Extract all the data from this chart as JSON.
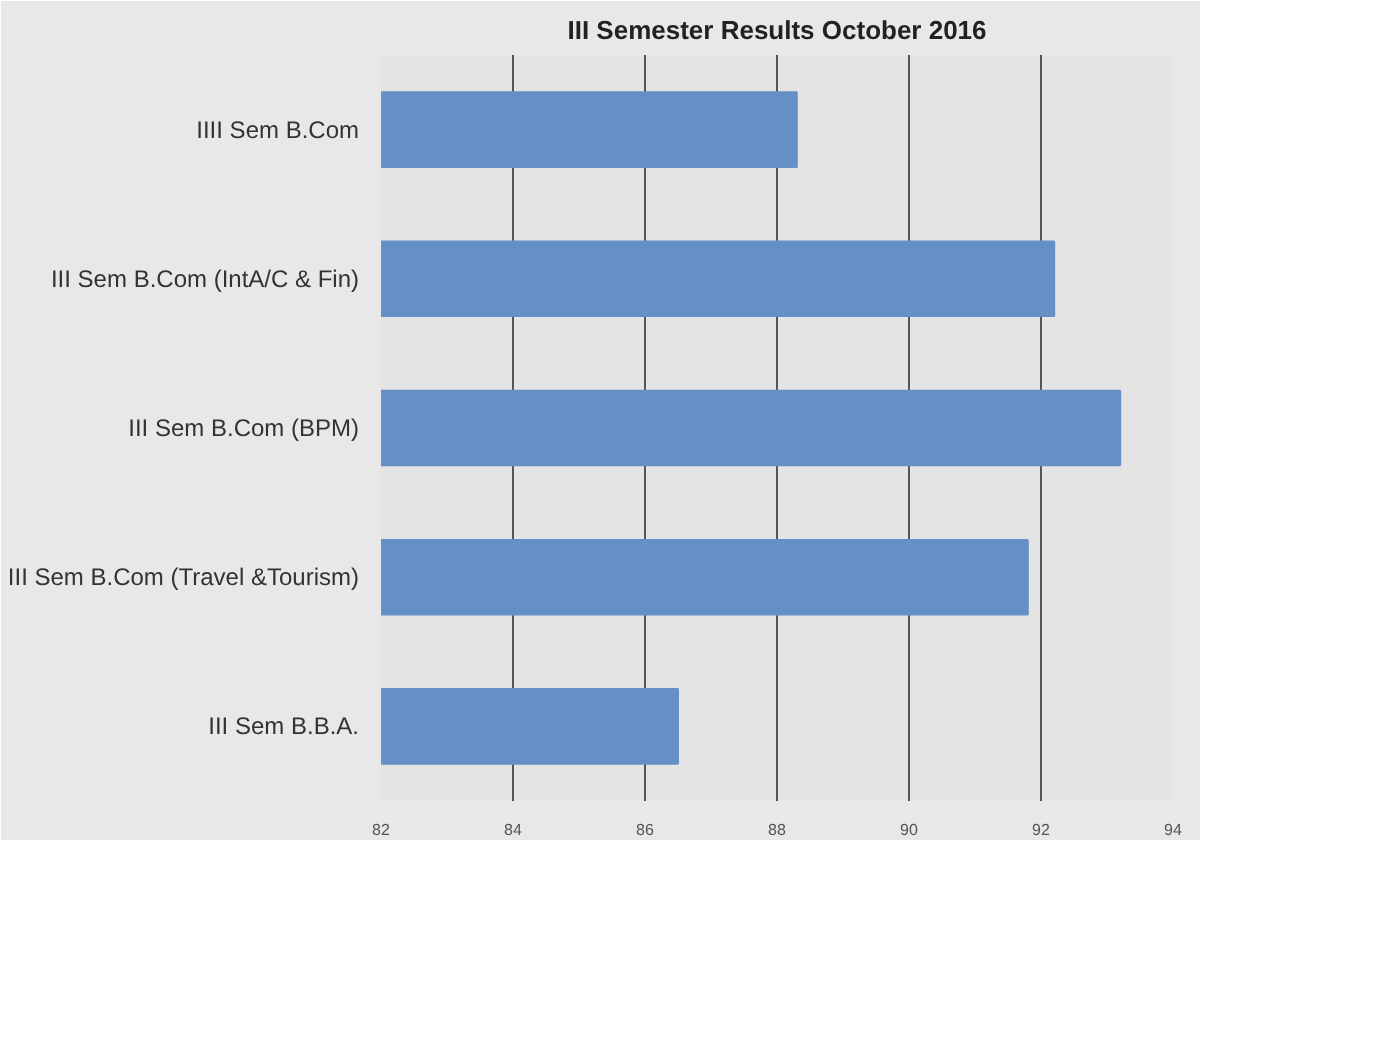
{
  "chart_data": {
    "type": "bar",
    "orientation": "horizontal",
    "title": "III Semester Results October 2016",
    "categories": [
      "IIII Sem B.Com",
      "III Sem B.Com (IntA/C & Fin)",
      "III Sem B.Com (BPM)",
      "III Sem B.Com (Travel &Tourism)",
      "III Sem B.B.A."
    ],
    "values": [
      88.3,
      92.2,
      93.2,
      91.8,
      86.5
    ],
    "color": "#6590c6",
    "xlim": [
      82,
      94
    ],
    "xticks": [
      82,
      84,
      86,
      88,
      90,
      92,
      94
    ],
    "grid": "x"
  }
}
